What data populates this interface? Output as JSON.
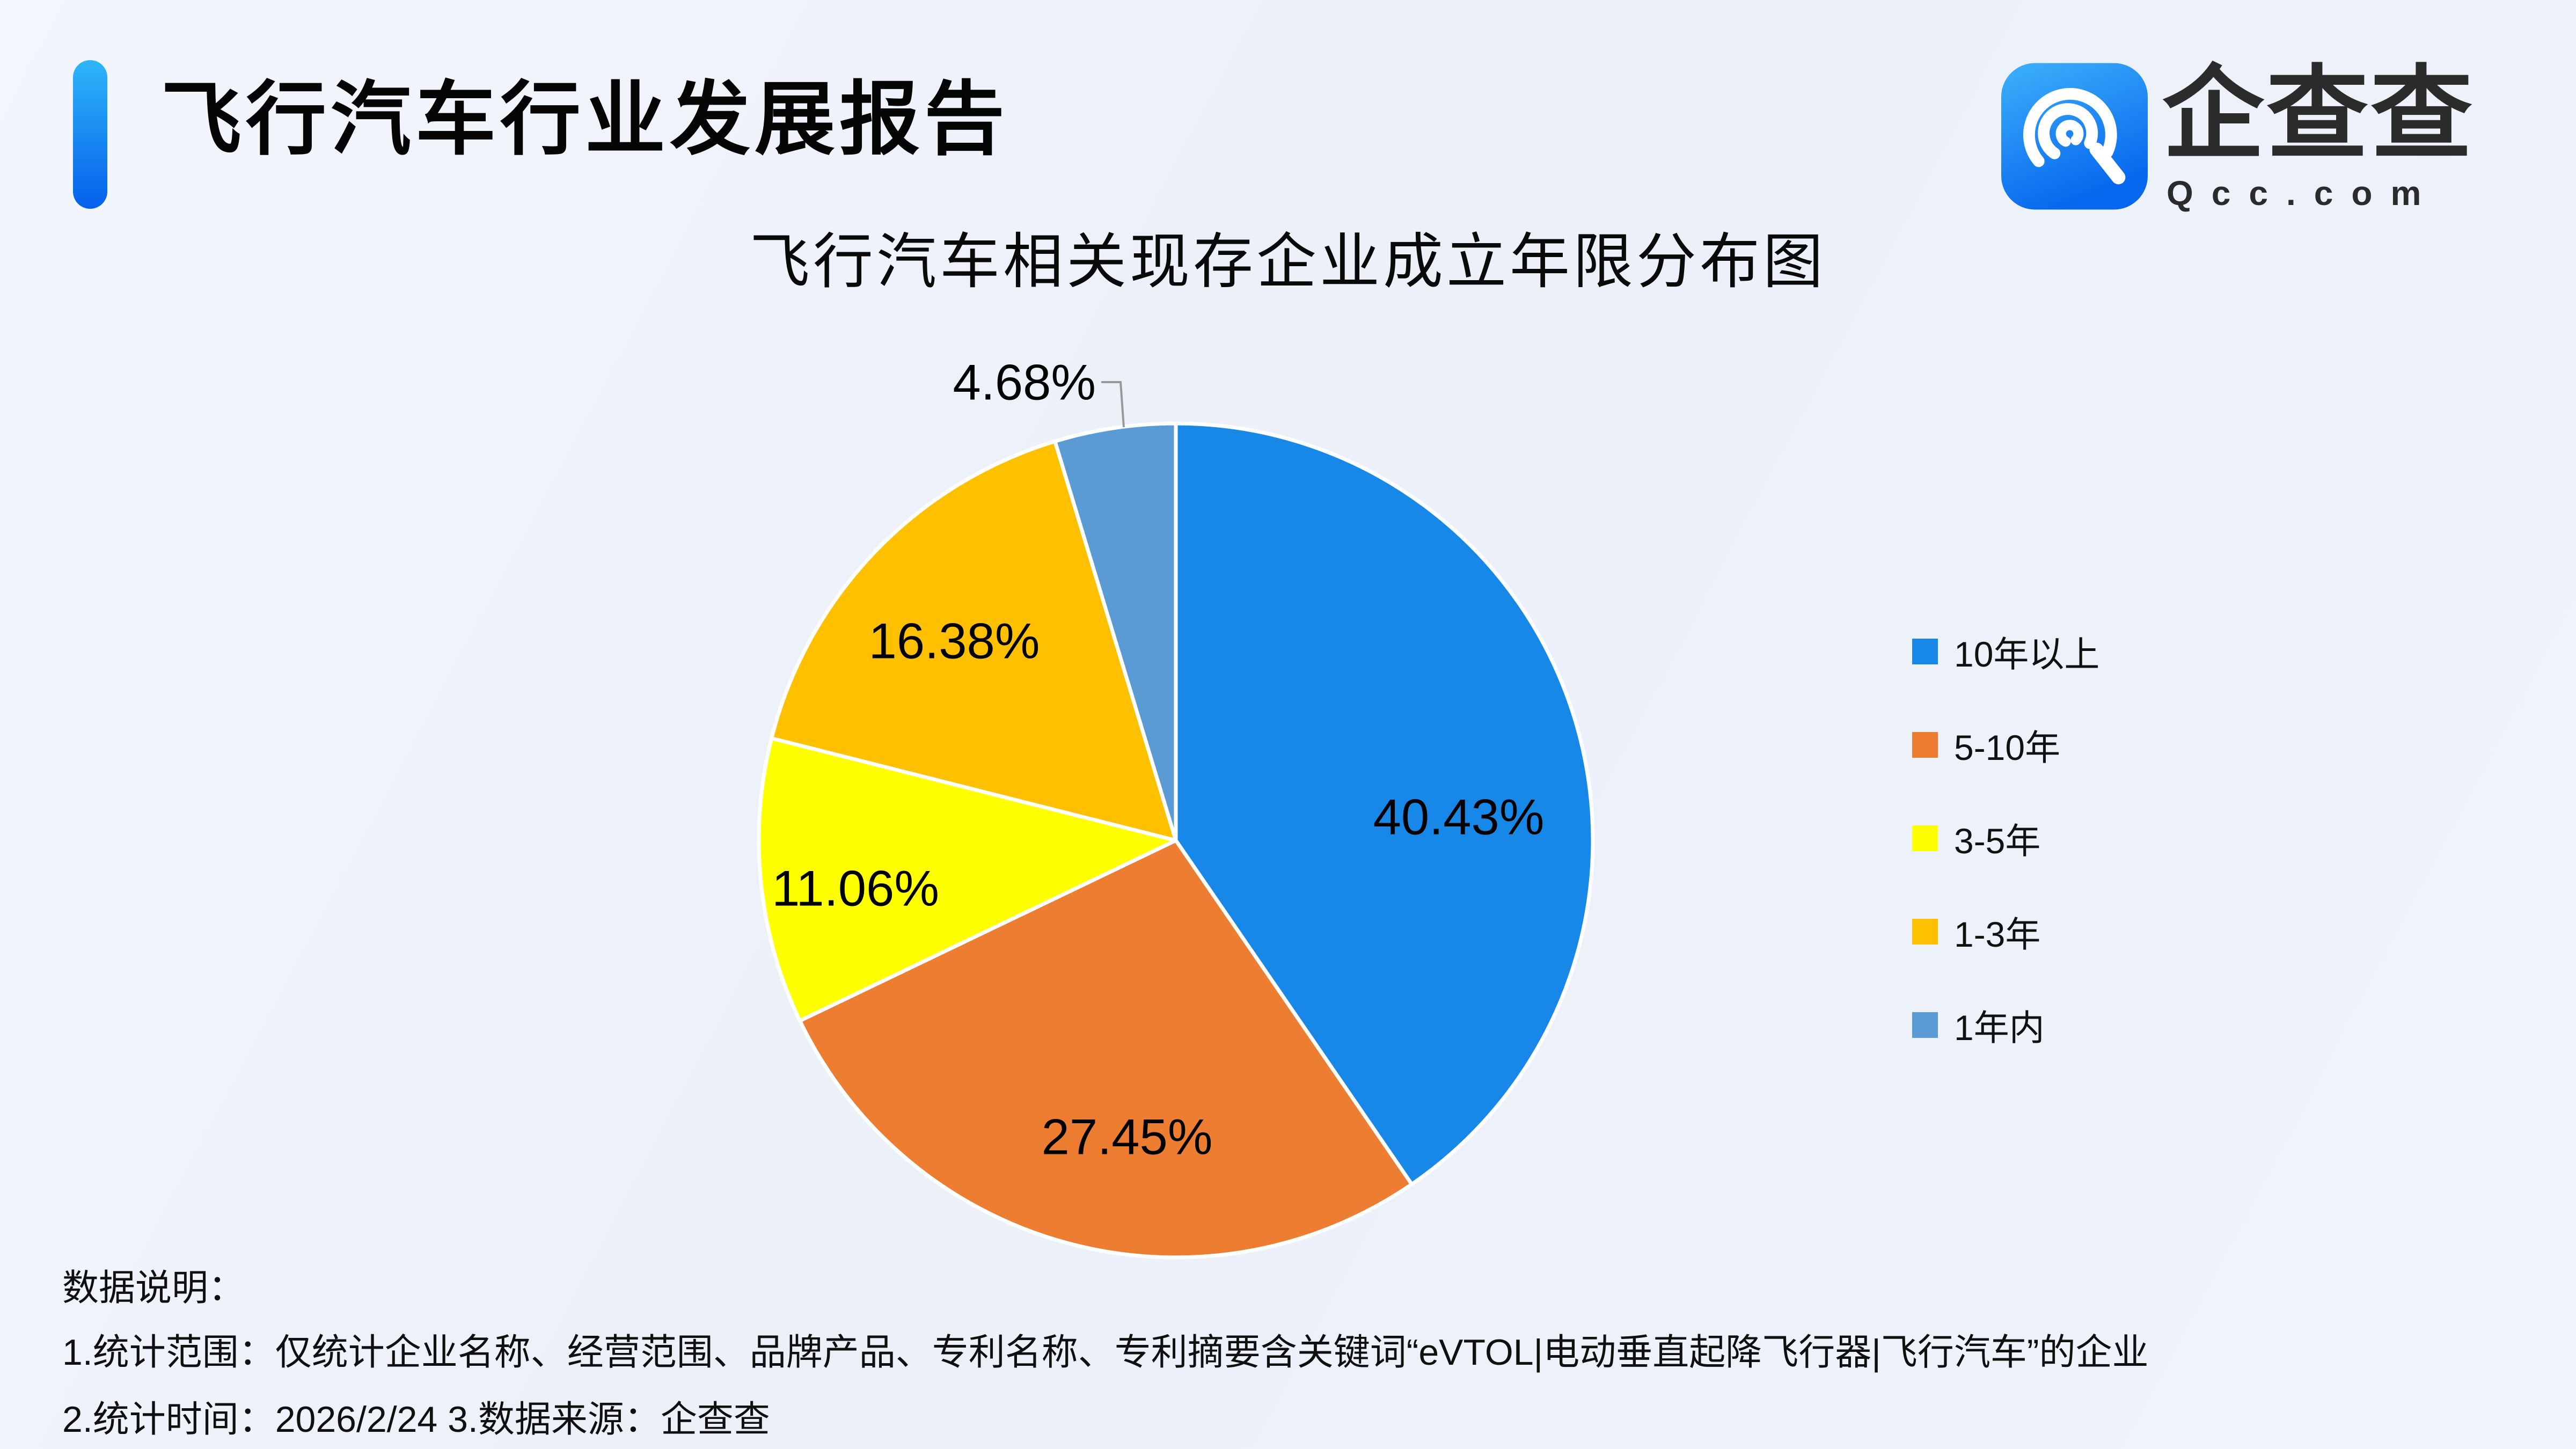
{
  "page": {
    "background": "#EDF1FA"
  },
  "header": {
    "title": "飞行汽车行业发展报告",
    "accent_bar_colors": [
      "#2EB6F9",
      "#0560EB"
    ]
  },
  "logo": {
    "name": "企查查",
    "domain": "Qcc.com",
    "icon_colors": [
      "#3DB1FB",
      "#0767EE"
    ]
  },
  "chart_data": {
    "type": "pie",
    "title": "飞行汽车相关现存企业成立年限分布图",
    "categories": [
      "10年以上",
      "5-10年",
      "3-5年",
      "1-3年",
      "1年内"
    ],
    "values": [
      40.43,
      27.45,
      11.06,
      16.38,
      4.68
    ],
    "labels": [
      "40.43%",
      "27.45%",
      "11.06%",
      "16.38%",
      "4.68%"
    ],
    "colors": [
      "#1787E8",
      "#ED7D31",
      "#FFFF00",
      "#FFC000",
      "#5B9BD5"
    ],
    "unit": "%",
    "start_angle": 0,
    "direction": "clockwise",
    "slice_border_color": "#FFFFFF",
    "label_color": "#000000",
    "leader_line_color": "#999999",
    "legend_position": "right"
  },
  "footer": {
    "heading": "数据说明：",
    "line1": "1.统计范围：仅统计企业名称、经营范围、品牌产品、专利名称、专利摘要含关键词“eVTOL|电动垂直起降飞行器|飞行汽车”的企业",
    "line2": "2.统计时间：2026/2/24  3.数据来源：企查查"
  }
}
